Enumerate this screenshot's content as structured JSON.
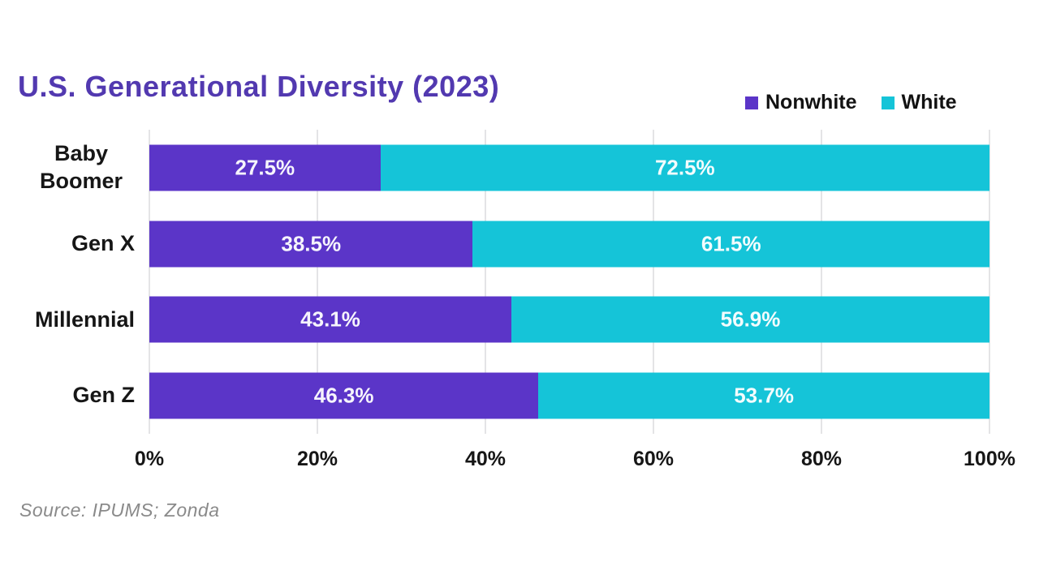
{
  "chart": {
    "title": "U.S. Generational Diversity (2023)",
    "source": "Source: IPUMS; Zonda",
    "colors": {
      "nonwhite": "#5b35c8",
      "white": "#15c4d8",
      "title_text": "#5239b0",
      "gridline": "#e4e4e6",
      "axis_text": "#161616",
      "source_text": "#8a8a8a"
    }
  },
  "chart_data": {
    "type": "bar",
    "stacked": true,
    "orientation": "horizontal",
    "title": "U.S. Generational Diversity (2023)",
    "categories": [
      "Baby Boomer",
      "Gen X",
      "Millennial",
      "Gen Z"
    ],
    "series": [
      {
        "name": "Nonwhite",
        "color": "#5b35c8",
        "values": [
          27.5,
          38.5,
          43.1,
          46.3
        ]
      },
      {
        "name": "White",
        "color": "#15c4d8",
        "values": [
          72.5,
          61.5,
          56.9,
          53.7
        ]
      }
    ],
    "value_labels": [
      [
        "27.5%",
        "72.5%"
      ],
      [
        "38.5%",
        "61.5%"
      ],
      [
        "43.1%",
        "56.9%"
      ],
      [
        "46.3%",
        "53.7%"
      ]
    ],
    "xlabel": "",
    "ylabel": "",
    "xlim": [
      0,
      100
    ],
    "x_ticks": [
      "0%",
      "20%",
      "40%",
      "60%",
      "80%",
      "100%"
    ],
    "x_tick_values": [
      0,
      20,
      40,
      60,
      80,
      100
    ],
    "grid": "vertical",
    "legend_position": "top-right",
    "source": "Source: IPUMS; Zonda"
  }
}
